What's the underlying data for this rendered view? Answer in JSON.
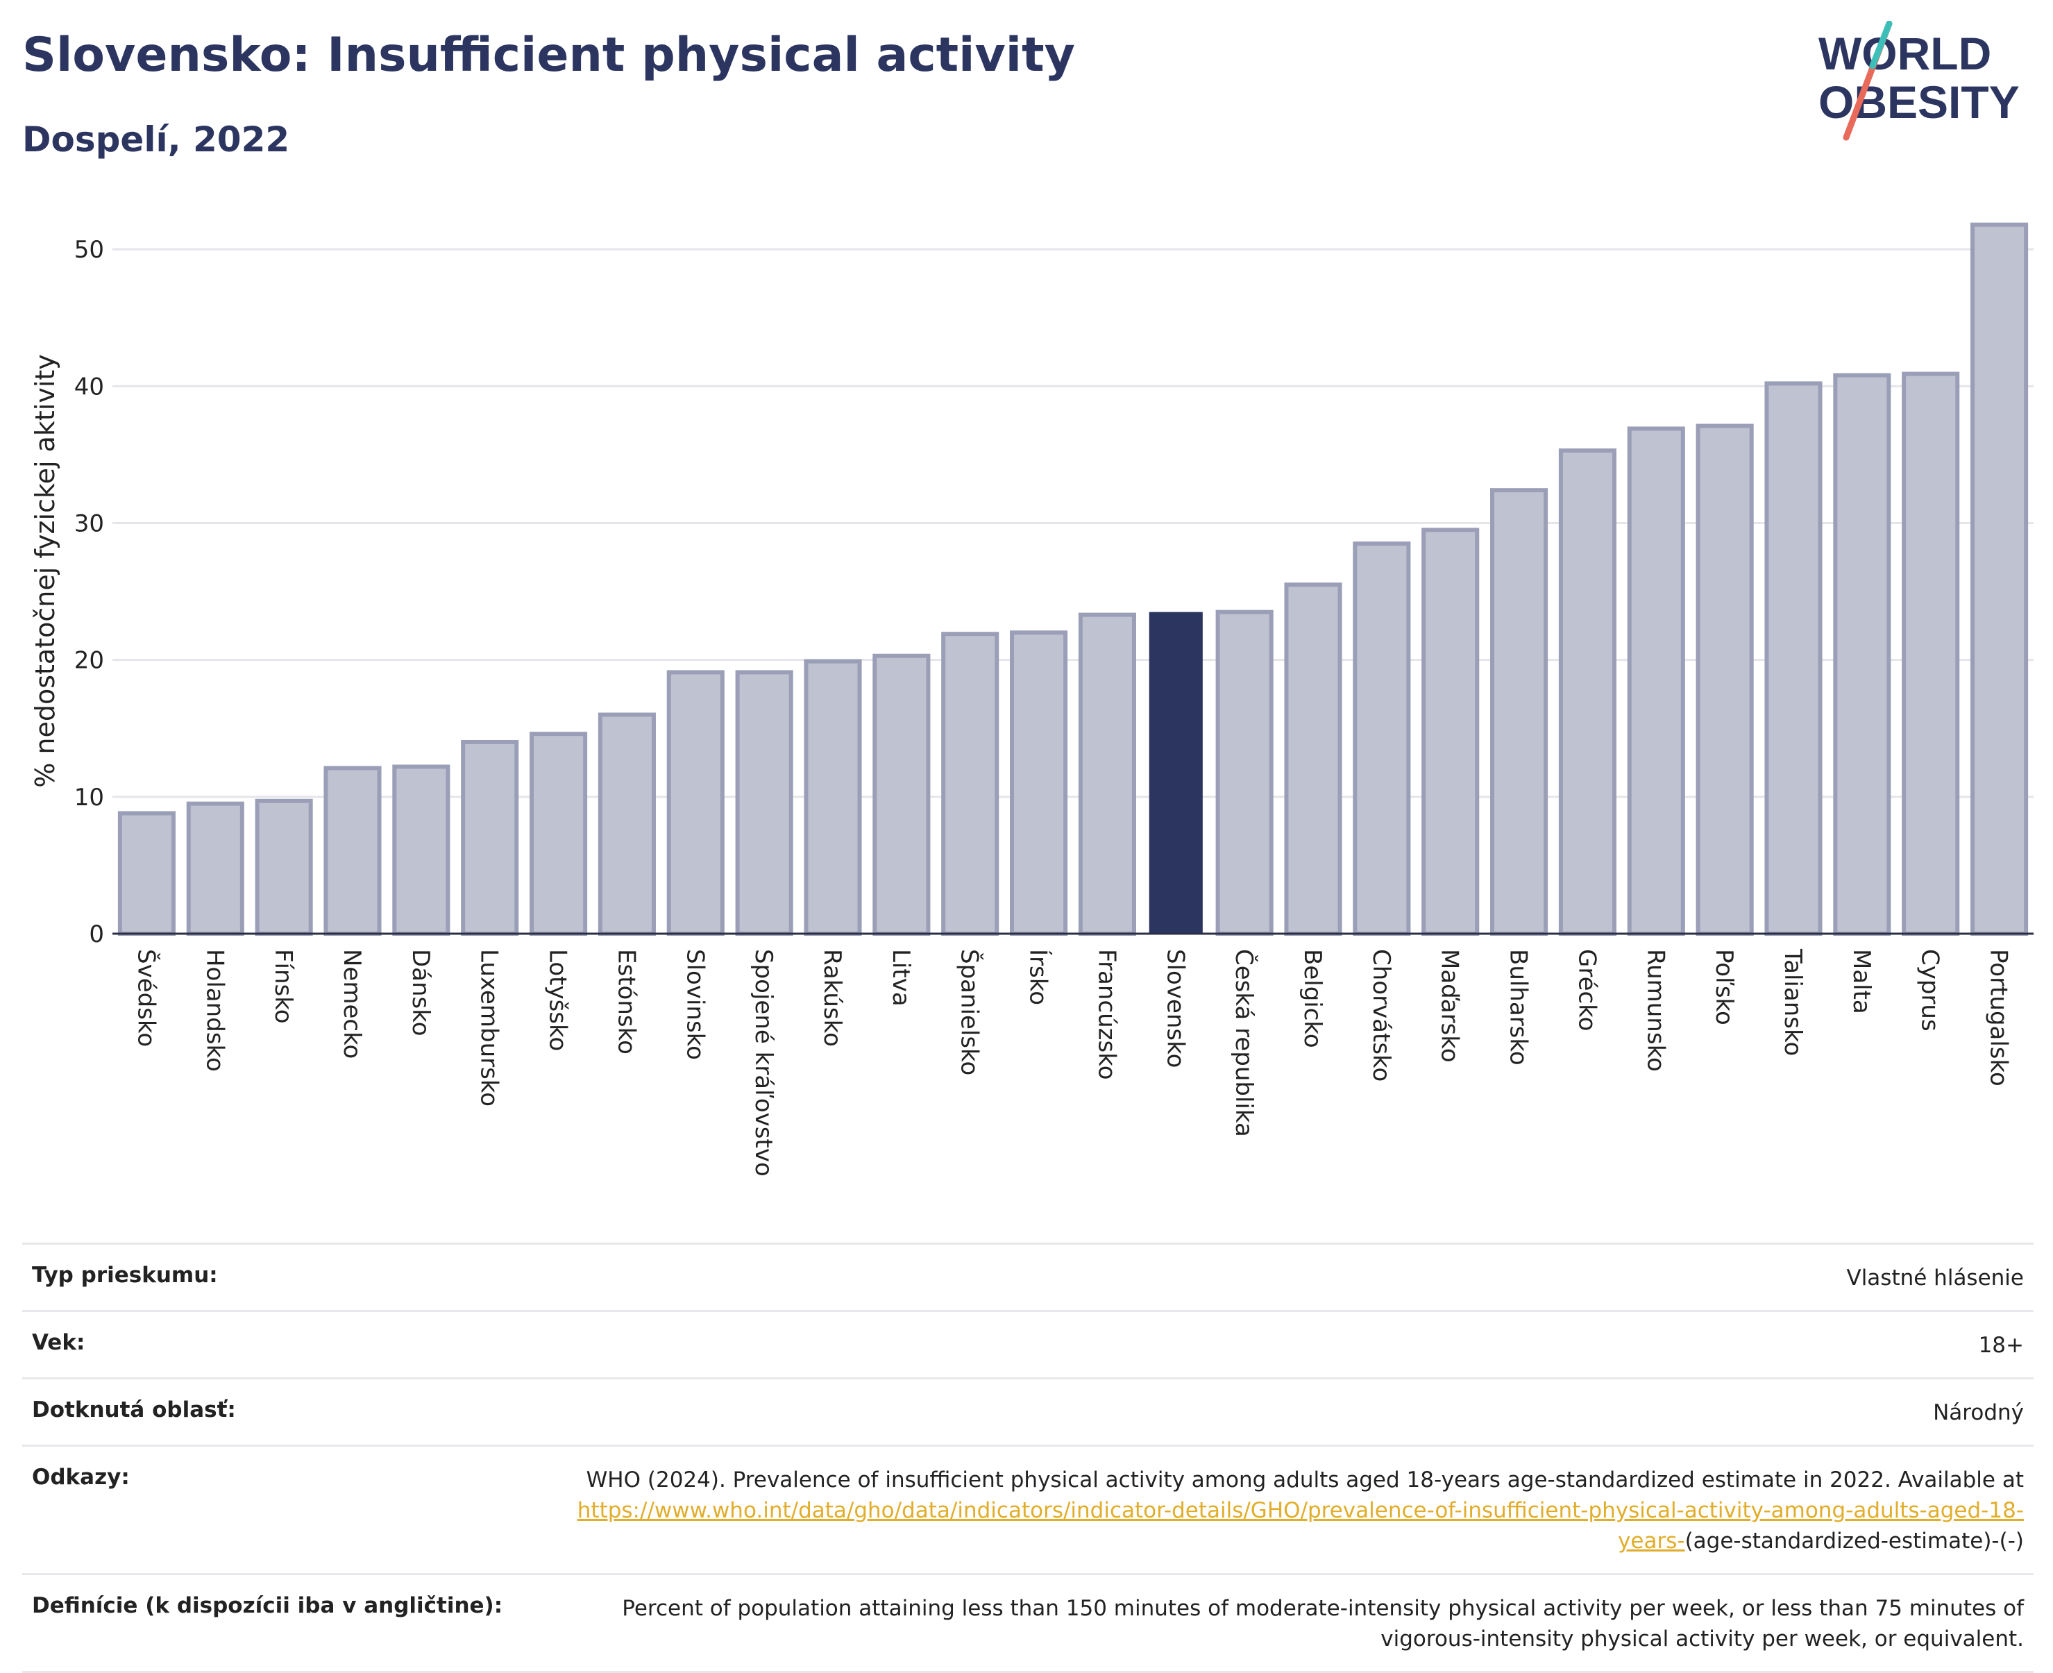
{
  "header": {
    "title": "Slovensko: Insufficient physical activity",
    "subtitle": "Dospelí, 2022"
  },
  "logo": {
    "line1": "WORLD",
    "line2": "OBESITY"
  },
  "colors": {
    "title": "#2b3560",
    "highlight_bar": "#2b3560",
    "bar_fill": "#bfc2d0",
    "bar_stroke": "#9a9fb7",
    "grid": "#e5e5ea",
    "link": "#e1ad2a",
    "logo_teal": "#3bbfb8",
    "logo_coral": "#e86a5b"
  },
  "chart_data": {
    "type": "bar",
    "ylabel": "% nedostatočnej fyzickej aktivity",
    "xlabel": "",
    "ylim": [
      0,
      53
    ],
    "yticks": [
      0,
      10,
      20,
      30,
      40,
      50
    ],
    "grid": true,
    "highlight": "Slovensko",
    "categories": [
      "Švédsko",
      "Holandsko",
      "Fínsko",
      "Nemecko",
      "Dánsko",
      "Luxembursko",
      "Lotyšsko",
      "Estónsko",
      "Slovinsko",
      "Spojené kráľovstvo",
      "Rakúsko",
      "Litva",
      "Španielsko",
      "Írsko",
      "Francúzsko",
      "Slovensko",
      "Česká republika",
      "Belgicko",
      "Chorvátsko",
      "Maďarsko",
      "Bulharsko",
      "Grécko",
      "Rumunsko",
      "Poľsko",
      "Taliansko",
      "Malta",
      "Cyprus",
      "Portugalsko"
    ],
    "values": [
      8.8,
      9.5,
      9.7,
      12.1,
      12.2,
      14.0,
      14.6,
      16.0,
      19.1,
      19.1,
      19.9,
      20.3,
      21.9,
      22.0,
      23.3,
      23.5,
      23.5,
      25.5,
      28.5,
      29.5,
      32.4,
      35.3,
      36.9,
      37.1,
      40.2,
      40.8,
      40.9,
      51.8
    ]
  },
  "meta": {
    "survey_label": "Typ prieskumu:",
    "survey_value": "Vlastné hlásenie",
    "age_label": "Vek:",
    "age_value": "18+",
    "area_label": "Dotknutá oblasť:",
    "area_value": "Národný",
    "refs_label": "Odkazy:",
    "refs_text": "WHO (2024). Prevalence of insufficient physical activity among adults aged 18-years age-standardized estimate in 2022. Available at",
    "refs_link": "https://www.who.int/data/gho/data/indicators/indicator-details/GHO/prevalence-of-insufficient-physical-activity-among-adults-aged-18-years-",
    "refs_suffix": "(age-standardized-estimate)-(-)",
    "def_label": "Definície (k dispozícii iba v angličtine):",
    "def_value": "Percent of population attaining less than 150 minutes of moderate-intensity physical activity per week, or less than 75 minutes of vigorous-intensity physical activity per week, or equivalent."
  }
}
